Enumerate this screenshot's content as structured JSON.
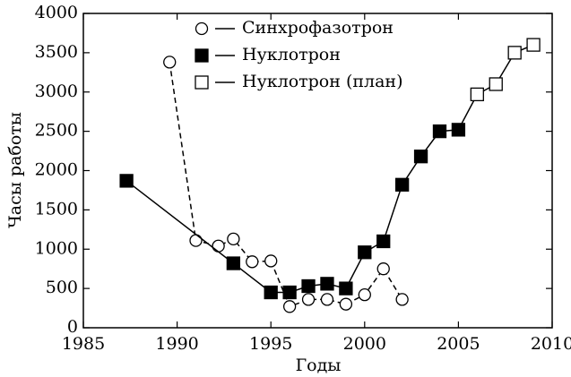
{
  "chart_data": {
    "type": "line",
    "xlabel": "Годы",
    "ylabel": "Часы работы",
    "xlim": [
      1985,
      2010
    ],
    "xticks": [
      1985,
      1990,
      1995,
      2000,
      2005,
      2010
    ],
    "ylim": [
      0,
      4000
    ],
    "yticks": [
      0,
      500,
      1000,
      1500,
      2000,
      2500,
      3000,
      3500,
      4000
    ],
    "legend": "top",
    "series": [
      {
        "name": "Синхрофазотрон",
        "color": "#000000",
        "marker": "circle",
        "marker_fill": "#ffffff",
        "linestyle": "dashed",
        "x": [
          1989.6,
          1991,
          1992.2,
          1993,
          1994,
          1995,
          1996,
          1997,
          1998,
          1999,
          2000,
          2001,
          2002
        ],
        "values": [
          3380,
          1110,
          1040,
          1130,
          840,
          850,
          270,
          360,
          360,
          300,
          420,
          750,
          360
        ]
      },
      {
        "name": "Нуклотрон",
        "color": "#000000",
        "marker": "square",
        "marker_fill": "#000000",
        "linestyle": "solid",
        "x": [
          1987.3,
          1993,
          1995,
          1996,
          1997,
          1998,
          1999,
          2000,
          2001,
          2002,
          2003,
          2004,
          2005
        ],
        "values": [
          1870,
          820,
          450,
          450,
          530,
          560,
          500,
          960,
          1100,
          1820,
          2180,
          2500,
          2520
        ]
      },
      {
        "name": "Нуклотрон (план)",
        "color": "#000000",
        "marker": "square",
        "marker_fill": "#ffffff",
        "linestyle": "solid",
        "x": [
          2006,
          2007,
          2008,
          2009
        ],
        "values": [
          2970,
          3100,
          3500,
          3600
        ]
      }
    ]
  }
}
